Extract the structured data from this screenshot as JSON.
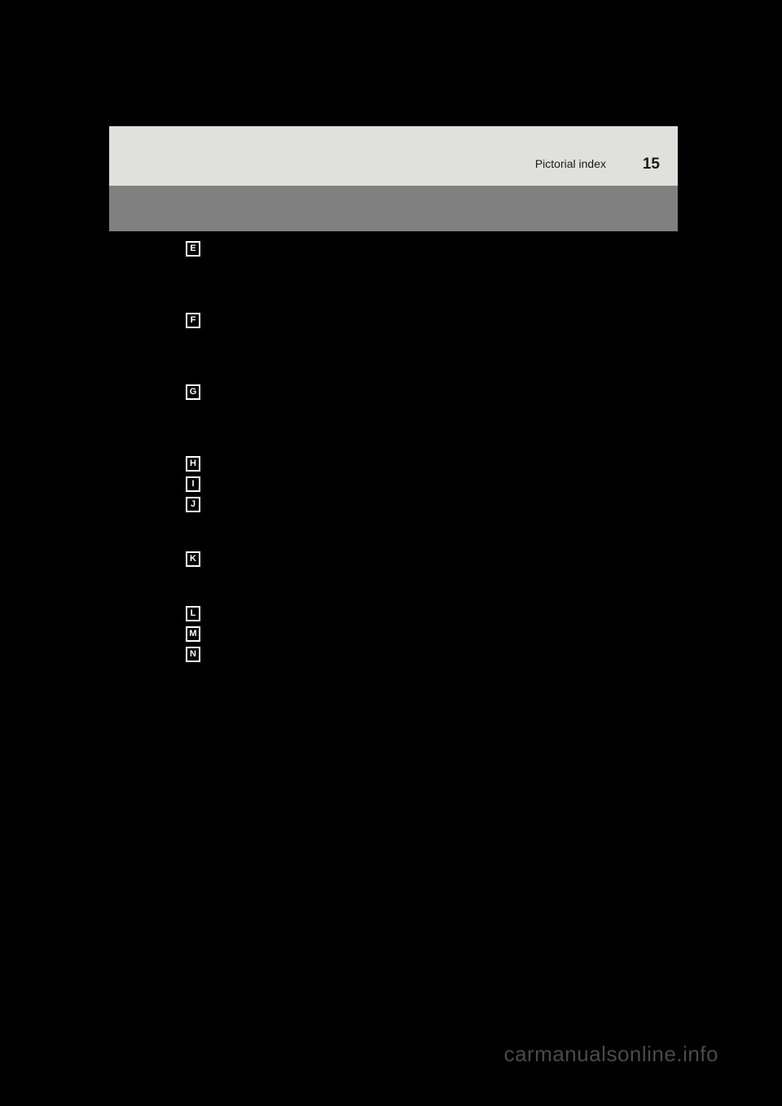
{
  "header": {
    "title": "Pictorial index",
    "page_number": "15"
  },
  "index_letters": [
    "E",
    "F",
    "G",
    "H",
    "I",
    "J",
    "K",
    "L",
    "M",
    "N"
  ],
  "layout": {
    "groups": [
      {
        "letter": "E",
        "blank_rows_after": 3
      },
      {
        "letter": "F",
        "blank_rows_after": 3
      },
      {
        "letter": "G",
        "blank_rows_after": 3
      },
      {
        "letter": "H",
        "blank_rows_after": 0
      },
      {
        "letter": "I",
        "blank_rows_after": 0
      },
      {
        "letter": "J",
        "blank_rows_after": 2
      },
      {
        "letter": "K",
        "blank_rows_after": 2
      },
      {
        "letter": "L",
        "blank_rows_after": 0
      },
      {
        "letter": "M",
        "blank_rows_after": 0
      },
      {
        "letter": "N",
        "blank_rows_after": 0
      }
    ]
  },
  "watermark": "carmanualsonline.info",
  "colors": {
    "background": "#000000",
    "header_light": "#e0e0dc",
    "header_gray": "#808080",
    "text_dark": "#1a1a1a",
    "letter_box_bg": "#000000",
    "letter_box_border": "#ffffff",
    "letter_box_text": "#ffffff",
    "watermark_color": "#4a4a4a"
  }
}
